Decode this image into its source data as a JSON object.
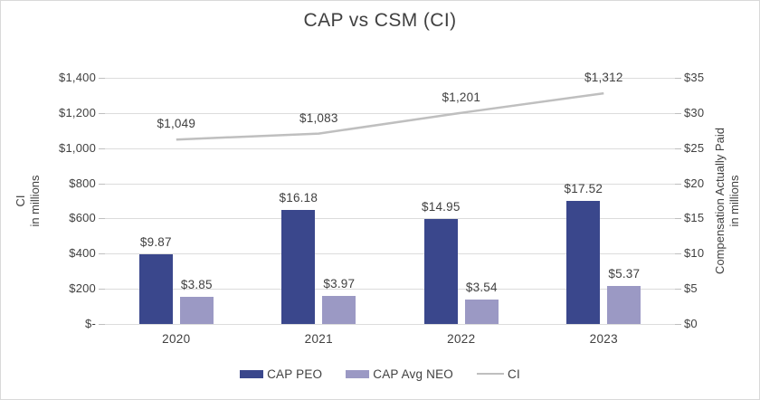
{
  "chart_data": {
    "type": "bar",
    "subtype": "grouped-bar-with-line-combo",
    "title": "CAP vs CSM (CI)",
    "categories": [
      "2020",
      "2021",
      "2022",
      "2023"
    ],
    "series": [
      {
        "name": "CAP PEO",
        "type": "bar",
        "axis": "right",
        "color": "#3a478c",
        "values": [
          9.87,
          16.18,
          14.95,
          17.52
        ],
        "labels": [
          "$9.87",
          "$16.18",
          "$14.95",
          "$17.52"
        ]
      },
      {
        "name": "CAP Avg NEO",
        "type": "bar",
        "axis": "right",
        "color": "#9b99c4",
        "values": [
          3.85,
          3.97,
          3.54,
          5.37
        ],
        "labels": [
          "$3.85",
          "$3.97",
          "$3.54",
          "$5.37"
        ]
      },
      {
        "name": "CI",
        "type": "line",
        "axis": "left",
        "color": "#bfbfbf",
        "values": [
          1049,
          1083,
          1201,
          1312
        ],
        "labels": [
          "$1,049",
          "$1,083",
          "$1,201",
          "$1,312"
        ]
      }
    ],
    "left_axis": {
      "title_line1": "CI",
      "title_line2": "in millions",
      "min": 0,
      "max": 1400,
      "ticks": [
        "$1,400",
        "$1,200",
        "$1,000",
        "$800",
        "$600",
        "$400",
        "$200",
        "$-"
      ]
    },
    "right_axis": {
      "title_line1": "Compensation Actually Paid",
      "title_line2": "in millions",
      "min": 0,
      "max": 35,
      "ticks": [
        "$35",
        "$30",
        "$25",
        "$20",
        "$15",
        "$10",
        "$5",
        "$0"
      ]
    },
    "grid": true,
    "legend_position": "bottom",
    "text_color": "#404040",
    "gridline_color": "#dcdcdc"
  }
}
